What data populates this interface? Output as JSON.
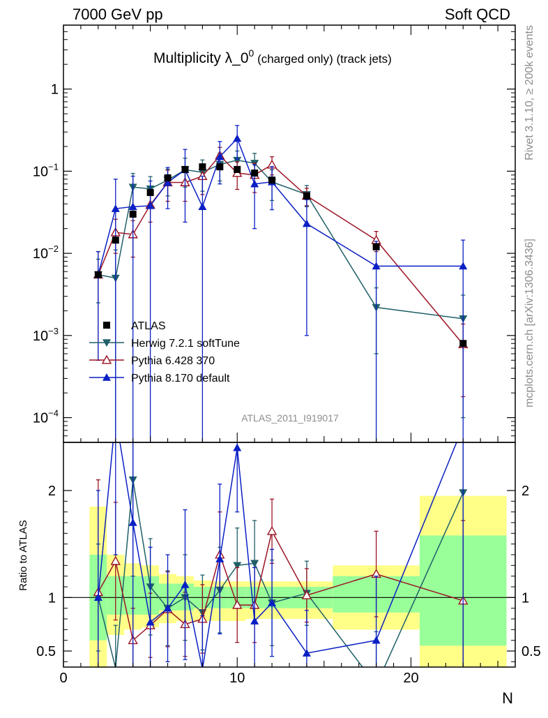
{
  "header": {
    "left": "7000 GeV pp",
    "right": "Soft QCD"
  },
  "side": {
    "rivet": "Rivet 3.1.10, ≥ 200k events",
    "mcplots": "mcplots.cern.ch [arXiv:1306.3436]"
  },
  "title": {
    "main": "Multiplicity λ_0",
    "sup": "0",
    "sub": " (charged only) (track jets)"
  },
  "watermark": "ATLAS_2011_I919017",
  "xlabel": "N",
  "ratio_ylabel": "Ratio to ATLAS",
  "legend": [
    {
      "name": "ATLAS",
      "color": "#000000",
      "marker": "square"
    },
    {
      "name": "Herwig 7.2.1 softTune",
      "color": "#1f5f68",
      "marker": "tri-down"
    },
    {
      "name": "Pythia 6.428 370",
      "color": "#9b1425",
      "marker": "tri-up-open"
    },
    {
      "name": "Pythia 8.170 default",
      "color": "#0a1fc4",
      "marker": "tri-up"
    }
  ],
  "colors": {
    "band_inner": "#99ff99",
    "band_outer": "#ffff88"
  },
  "chart_data": {
    "type": "scatter",
    "title": "Multiplicity λ_0^0 (charged only) (track jets)",
    "xlabel": "N",
    "ylabel": "",
    "xlim": [
      0,
      26
    ],
    "main_ylim": [
      5e-05,
      6
    ],
    "main_yscale": "log",
    "main_ticks": [
      {
        "v": 0.0001,
        "base": "10",
        "exp": "−4"
      },
      {
        "v": 0.001,
        "base": "10",
        "exp": "−3"
      },
      {
        "v": 0.01,
        "base": "10",
        "exp": "−2"
      },
      {
        "v": 0.1,
        "base": "10",
        "exp": "−1"
      },
      {
        "v": 1,
        "base": "1",
        "exp": ""
      }
    ],
    "ratio_ylim": [
      0.35,
      2.45
    ],
    "ratio_ticks": [
      0.5,
      1,
      2
    ],
    "ratio_tick_labels": [
      "0.5",
      "1",
      "2"
    ],
    "x_ticks": [
      0,
      10,
      20
    ],
    "x_tick_labels": [
      "0",
      "10",
      "20"
    ],
    "data": {
      "name": "ATLAS",
      "x": [
        2,
        3,
        4,
        5,
        6,
        7,
        8,
        9,
        10,
        11,
        12,
        14,
        18,
        23
      ],
      "xerr": [
        [
          1.5,
          2.5
        ],
        [
          2.5,
          3.5
        ],
        [
          3.5,
          4.5
        ],
        [
          4.5,
          5.5
        ],
        [
          5.5,
          6.5
        ],
        [
          6.5,
          7.5
        ],
        [
          7.5,
          8.5
        ],
        [
          8.5,
          9.5
        ],
        [
          9.5,
          10.5
        ],
        [
          10.5,
          11.5
        ],
        [
          11.5,
          12.5
        ],
        [
          12.5,
          15.5
        ],
        [
          15.5,
          20.5
        ],
        [
          20.5,
          25.5
        ]
      ],
      "y": [
        0.0055,
        0.0145,
        0.03,
        0.055,
        0.083,
        0.105,
        0.113,
        0.113,
        0.105,
        0.095,
        0.078,
        0.05,
        0.012,
        0.0008
      ]
    },
    "series": [
      {
        "name": "Herwig 7.2.1 softTune",
        "x": [
          2,
          3,
          4,
          5,
          6,
          7,
          8,
          9,
          10,
          11,
          12,
          14,
          18,
          23
        ],
        "y": [
          0.0055,
          0.005,
          0.064,
          0.061,
          0.078,
          0.104,
          0.097,
          0.121,
          0.136,
          0.125,
          0.074,
          0.052,
          0.0022,
          0.0016
        ],
        "err": [
          0.003,
          0.006,
          0.03,
          0.025,
          0.028,
          0.04,
          0.04,
          0.045,
          0.04,
          0.04,
          0.03,
          0.015,
          0.0016,
          0.0015
        ],
        "ratio": [
          1.0,
          0.34,
          2.1,
          1.1,
          0.9,
          1.0,
          0.86,
          1.07,
          1.3,
          1.32,
          0.95,
          1.04,
          0.18,
          1.98
        ],
        "ratio_err": [
          0.5,
          0.4,
          0.9,
          0.45,
          0.35,
          0.4,
          0.35,
          0.4,
          0.35,
          0.4,
          0.4,
          0.3,
          0.5,
          1.8
        ]
      },
      {
        "name": "Pythia 6.428 370",
        "x": [
          2,
          3,
          4,
          5,
          6,
          7,
          8,
          9,
          10,
          11,
          12,
          14,
          18,
          23
        ],
        "y": [
          0.0055,
          0.018,
          0.017,
          0.039,
          0.073,
          0.073,
          0.087,
          0.155,
          0.095,
          0.09,
          0.12,
          0.05,
          0.0145,
          0.00078
        ],
        "err": [
          0.005,
          0.008,
          0.008,
          0.015,
          0.03,
          0.03,
          0.035,
          0.04,
          0.035,
          0.035,
          0.03,
          0.012,
          0.004,
          0.0006
        ],
        "ratio": [
          1.05,
          1.34,
          0.6,
          0.74,
          0.89,
          0.75,
          0.8,
          1.4,
          0.93,
          0.93,
          1.62,
          1.02,
          1.22,
          0.97
        ],
        "ratio_err": [
          1.05,
          0.55,
          0.3,
          0.3,
          0.35,
          0.3,
          0.32,
          0.4,
          0.35,
          0.35,
          0.3,
          0.25,
          0.4,
          0.75
        ]
      },
      {
        "name": "Pythia 8.170 default",
        "x": [
          2,
          3,
          4,
          5,
          6,
          7,
          8,
          9,
          10,
          11,
          12,
          14,
          18,
          23
        ],
        "y": [
          0.0055,
          0.035,
          0.037,
          0.038,
          0.073,
          0.104,
          0.037,
          0.15,
          0.25,
          0.07,
          0.074,
          0.023,
          0.007,
          0.007
        ],
        "err": [
          0.005,
          0.045,
          0.05,
          0.038,
          0.038,
          0.08,
          0.05,
          0.08,
          0.11,
          0.05,
          0.04,
          0.022,
          0.007,
          0.0075
        ],
        "ratio": [
          1.0,
          2.7,
          1.7,
          0.77,
          0.9,
          1.12,
          0.33,
          1.36,
          2.4,
          0.78,
          0.95,
          0.48,
          0.6,
          2.6
        ],
        "ratio_err": [
          1.0,
          1.3,
          1.4,
          0.7,
          0.5,
          0.7,
          0.5,
          0.7,
          0.6,
          0.5,
          0.5,
          0.4,
          0.6,
          2.5
        ]
      }
    ],
    "bands": {
      "inner_lo": [
        0.6,
        0.84,
        0.84,
        0.84,
        0.88,
        0.88,
        0.9,
        0.9,
        0.9,
        0.9,
        0.9,
        0.9,
        0.86,
        0.55
      ],
      "inner_hi": [
        1.4,
        1.2,
        1.2,
        1.2,
        1.13,
        1.13,
        1.1,
        1.1,
        1.1,
        1.1,
        1.1,
        1.1,
        1.2,
        1.58
      ],
      "outer_lo": [
        0.35,
        0.65,
        0.7,
        0.72,
        0.76,
        0.78,
        0.78,
        0.78,
        0.78,
        0.8,
        0.8,
        0.8,
        0.7,
        0.35
      ],
      "outer_hi": [
        1.85,
        1.4,
        1.32,
        1.3,
        1.22,
        1.2,
        1.16,
        1.15,
        1.15,
        1.15,
        1.15,
        1.15,
        1.3,
        1.95
      ]
    }
  }
}
